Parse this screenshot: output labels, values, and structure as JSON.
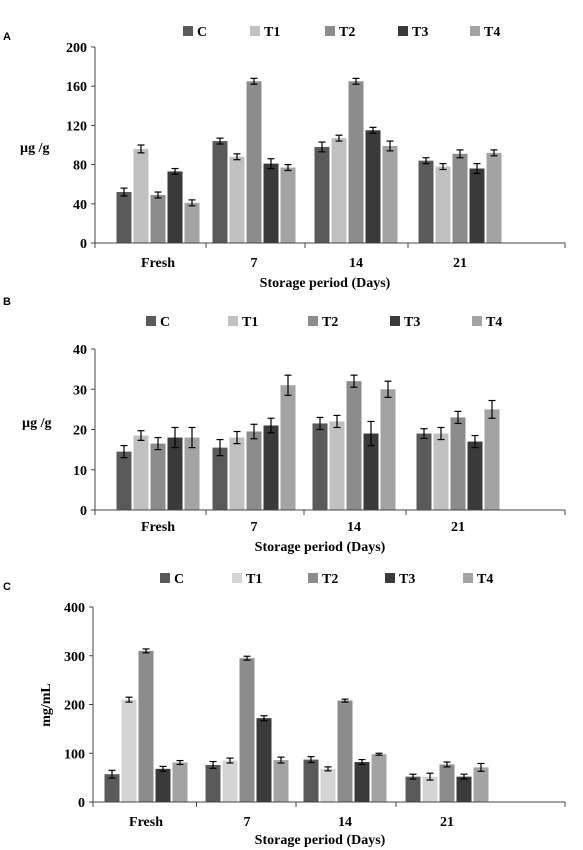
{
  "chart_data": [
    {
      "type": "bar",
      "panel": "A",
      "categories": [
        "Fresh",
        "7",
        "14",
        "21"
      ],
      "series": [
        {
          "name": "C",
          "color": "#5a5a5a",
          "values": [
            52,
            104,
            98,
            84
          ],
          "errors": [
            4,
            3,
            5,
            3
          ]
        },
        {
          "name": "T1",
          "color": "#c0c0c0",
          "values": [
            96,
            88,
            107,
            78
          ],
          "errors": [
            4,
            3,
            3,
            3
          ]
        },
        {
          "name": "T2",
          "color": "#8c8c8c",
          "values": [
            49,
            165,
            165,
            91
          ],
          "errors": [
            3,
            3,
            3,
            4
          ]
        },
        {
          "name": "T3",
          "color": "#3a3a3a",
          "values": [
            73,
            81,
            115,
            76
          ],
          "errors": [
            3,
            5,
            3,
            5
          ]
        },
        {
          "name": "T4",
          "color": "#a3a3a3",
          "values": [
            41,
            77,
            99,
            92
          ],
          "errors": [
            3,
            3,
            5,
            3
          ]
        }
      ],
      "xlabel": "Storage period (Days)",
      "ylabel": "µg /g",
      "ylim": [
        0,
        200
      ],
      "yticks": [
        "0",
        "40",
        "80",
        "120",
        "160",
        "200"
      ],
      "grid": false,
      "legend": "top"
    },
    {
      "type": "bar",
      "panel": "B",
      "categories": [
        "Fresh",
        "7",
        "14",
        "21"
      ],
      "series": [
        {
          "name": "C",
          "color": "#5a5a5a",
          "values": [
            14.5,
            15.5,
            21.5,
            19
          ],
          "errors": [
            1.5,
            2.0,
            1.5,
            1.2
          ]
        },
        {
          "name": "T1",
          "color": "#c0c0c0",
          "values": [
            18.5,
            18,
            22,
            19
          ],
          "errors": [
            1.2,
            1.5,
            1.5,
            1.5
          ]
        },
        {
          "name": "T2",
          "color": "#8c8c8c",
          "values": [
            16.5,
            19.5,
            32,
            23
          ],
          "errors": [
            1.5,
            1.8,
            1.5,
            1.5
          ]
        },
        {
          "name": "T3",
          "color": "#3a3a3a",
          "values": [
            18,
            21,
            19,
            17
          ],
          "errors": [
            2.5,
            1.8,
            3.0,
            1.5
          ]
        },
        {
          "name": "T4",
          "color": "#a3a3a3",
          "values": [
            18,
            31,
            30,
            25
          ],
          "errors": [
            2.5,
            2.5,
            2.0,
            2.2
          ]
        }
      ],
      "xlabel": "Storage period (Days)",
      "ylabel": "µg /g",
      "ylim": [
        0,
        40
      ],
      "yticks": [
        "0",
        "10",
        "20",
        "30",
        "40"
      ],
      "grid": false,
      "legend": "top"
    },
    {
      "type": "bar",
      "panel": "C",
      "categories": [
        "Fresh",
        "7",
        "14",
        "21"
      ],
      "series": [
        {
          "name": "C",
          "color": "#5a5a5a",
          "values": [
            57,
            76,
            87,
            52
          ],
          "errors": [
            8,
            7,
            6,
            5
          ]
        },
        {
          "name": "T1",
          "color": "#d4d4d4",
          "values": [
            210,
            85,
            68,
            52
          ],
          "errors": [
            5,
            5,
            4,
            7
          ]
        },
        {
          "name": "T2",
          "color": "#8c8c8c",
          "values": [
            310,
            295,
            208,
            77
          ],
          "errors": [
            4,
            4,
            3,
            5
          ]
        },
        {
          "name": "T3",
          "color": "#3a3a3a",
          "values": [
            68,
            172,
            82,
            52
          ],
          "errors": [
            5,
            5,
            5,
            5
          ]
        },
        {
          "name": "T4",
          "color": "#a3a3a3",
          "values": [
            81,
            86,
            98,
            71
          ],
          "errors": [
            4,
            6,
            2,
            8
          ]
        }
      ],
      "xlabel": "Storage period (Days)",
      "ylabel": "mg/mL",
      "ylim": [
        0,
        400
      ],
      "yticks": [
        "0",
        "100",
        "200",
        "300",
        "400"
      ],
      "grid": false,
      "legend": "top"
    }
  ]
}
